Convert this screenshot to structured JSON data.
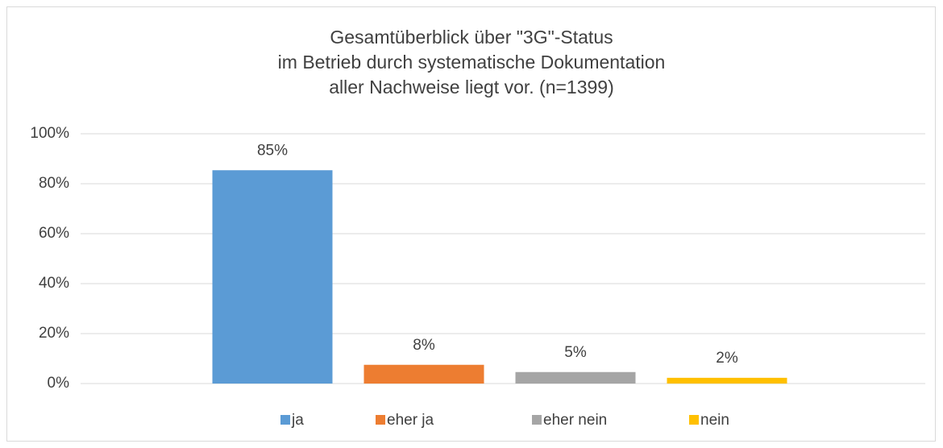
{
  "chart_data": {
    "type": "bar",
    "title": [
      "Gesamtüberblick über \"3G\"-Status",
      "im Betrieb durch systematische Dokumentation",
      "aller Nachweise liegt vor. (n=1399)"
    ],
    "categories": [
      null
    ],
    "series": [
      {
        "name": "ja",
        "color": "#5b9bd5",
        "values": [
          85.4
        ],
        "value_labels": [
          "85%"
        ]
      },
      {
        "name": "eher ja",
        "color": "#ed7d31",
        "values": [
          7.5
        ],
        "value_labels": [
          "8%"
        ]
      },
      {
        "name": "eher nein",
        "color": "#a5a5a5",
        "values": [
          4.6
        ],
        "value_labels": [
          "5%"
        ]
      },
      {
        "name": "nein",
        "color": "#ffc000",
        "values": [
          2.3
        ],
        "value_labels": [
          "2%"
        ]
      }
    ],
    "ylim": [
      0,
      100
    ],
    "yticks": [
      {
        "value": 0,
        "label": "0%"
      },
      {
        "value": 20,
        "label": "20%"
      },
      {
        "value": 40,
        "label": "40%"
      },
      {
        "value": 60,
        "label": "60%"
      },
      {
        "value": 80,
        "label": "80%"
      },
      {
        "value": 100,
        "label": "100%"
      }
    ],
    "grid": true,
    "legend": "bottom"
  }
}
